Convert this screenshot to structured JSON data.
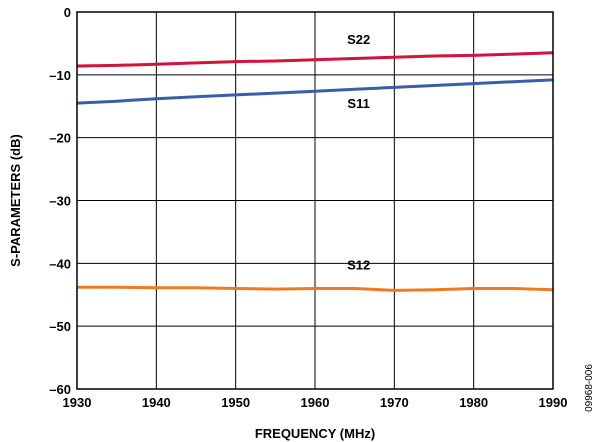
{
  "chart_data": {
    "type": "line",
    "xlabel": "FREQUENCY (MHz)",
    "ylabel": "S-PARAMETERS (dB)",
    "xlim": [
      1930,
      1990
    ],
    "ylim": [
      -60,
      0
    ],
    "xticks": [
      1930,
      1940,
      1950,
      1960,
      1970,
      1980,
      1990
    ],
    "yticks": [
      0,
      -10,
      -20,
      -30,
      -40,
      -50,
      -60
    ],
    "ytick_labels": [
      "0",
      "–10",
      "–20",
      "–30",
      "–40",
      "–50",
      "–60"
    ],
    "grid": true,
    "series": [
      {
        "name": "S22",
        "color": "#d0143c",
        "x": [
          1930,
          1935,
          1940,
          1945,
          1950,
          1955,
          1960,
          1965,
          1970,
          1975,
          1980,
          1985,
          1990
        ],
        "y": [
          -8.6,
          -8.5,
          -8.3,
          -8.1,
          -7.9,
          -7.8,
          -7.6,
          -7.4,
          -7.2,
          -7.0,
          -6.9,
          -6.7,
          -6.5
        ]
      },
      {
        "name": "S11",
        "color": "#3b5da8",
        "x": [
          1930,
          1935,
          1940,
          1945,
          1950,
          1955,
          1960,
          1965,
          1970,
          1975,
          1980,
          1985,
          1990
        ],
        "y": [
          -14.5,
          -14.2,
          -13.8,
          -13.5,
          -13.2,
          -12.9,
          -12.6,
          -12.3,
          -12.0,
          -11.7,
          -11.4,
          -11.1,
          -10.8
        ]
      },
      {
        "name": "S12",
        "color": "#f07a22",
        "x": [
          1930,
          1935,
          1940,
          1945,
          1950,
          1955,
          1960,
          1965,
          1970,
          1975,
          1980,
          1985,
          1990
        ],
        "y": [
          -43.8,
          -43.8,
          -43.9,
          -43.9,
          -44.0,
          -44.1,
          -44.0,
          -44.0,
          -44.3,
          -44.2,
          -44.0,
          -44.0,
          -44.2
        ]
      }
    ],
    "annotations": [
      {
        "text": "S22",
        "x": 1965.5,
        "y": -5.1
      },
      {
        "text": "S11",
        "x": 1965.5,
        "y": -15.3
      },
      {
        "text": "S12",
        "x": 1965.5,
        "y": -41.0
      }
    ]
  },
  "figure_id": "09968-006"
}
